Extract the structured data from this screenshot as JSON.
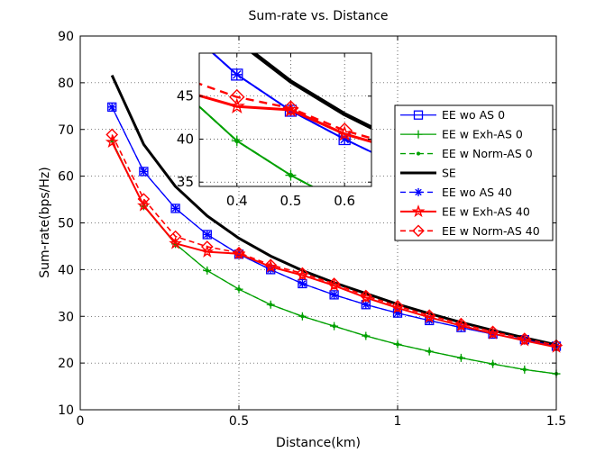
{
  "chart_data": {
    "type": "line",
    "title": "Sum-rate vs. Distance",
    "xlabel": "Distance(km)",
    "ylabel": "Sum-rate(bps/Hz)",
    "xlim": [
      0,
      1.5
    ],
    "ylim": [
      10,
      90
    ],
    "xticks": [
      0,
      0.5,
      1,
      1.5
    ],
    "xtick_labels": [
      "0",
      "0.5",
      "1",
      "1.5"
    ],
    "yticks": [
      10,
      20,
      30,
      40,
      50,
      60,
      70,
      80,
      90
    ],
    "ytick_labels": [
      "10",
      "20",
      "30",
      "40",
      "50",
      "60",
      "70",
      "80",
      "90"
    ],
    "grid": true,
    "legend_position": "inside-right",
    "x": [
      0.1,
      0.2,
      0.3,
      0.4,
      0.5,
      0.6,
      0.7,
      0.8,
      0.9,
      1.0,
      1.1,
      1.2,
      1.3,
      1.4,
      1.5
    ],
    "series": [
      {
        "name": "EE wo AS 0",
        "color": "#0000ff",
        "line": "solid",
        "width": 1.3,
        "marker": "square",
        "values": [
          74.8,
          61.0,
          53.1,
          47.5,
          43.3,
          40.0,
          37.0,
          34.6,
          32.5,
          30.7,
          29.1,
          27.6,
          26.2,
          25.0,
          23.6
        ]
      },
      {
        "name": "EE w Exh-AS 0",
        "color": "#00a000",
        "line": "solid",
        "width": 1.3,
        "marker": "plus",
        "values": [
          67.6,
          53.6,
          45.5,
          39.8,
          35.8,
          32.5,
          30.0,
          27.9,
          25.8,
          24.0,
          22.5,
          21.1,
          19.8,
          18.6,
          17.7
        ]
      },
      {
        "name": "EE w Norm-AS 0",
        "color": "#00a000",
        "line": "dashed",
        "width": 1.3,
        "marker": "dot",
        "values": [
          67.6,
          53.6,
          45.5,
          39.8,
          35.8,
          32.5,
          30.0,
          27.9,
          25.8,
          24.0,
          22.5,
          21.1,
          19.8,
          18.6,
          17.7
        ]
      },
      {
        "name": "SE",
        "color": "#000000",
        "line": "solid",
        "width": 3,
        "marker": "none",
        "values": [
          81.6,
          66.8,
          57.8,
          51.5,
          46.7,
          42.9,
          39.8,
          37.2,
          34.9,
          32.6,
          30.6,
          28.7,
          27.0,
          25.4,
          23.9
        ]
      },
      {
        "name": "EE wo AS 40",
        "color": "#0000ff",
        "line": "dashed",
        "width": 1.3,
        "marker": "asterisk",
        "values": [
          74.8,
          61.0,
          53.1,
          47.5,
          43.3,
          40.0,
          37.0,
          34.6,
          32.5,
          30.7,
          29.1,
          27.6,
          26.2,
          25.0,
          23.6
        ]
      },
      {
        "name": "EE w Exh-AS 40",
        "color": "#ff0000",
        "line": "solid",
        "width": 2,
        "marker": "star",
        "values": [
          67.3,
          53.7,
          45.6,
          43.8,
          43.4,
          40.6,
          38.8,
          36.6,
          34.0,
          31.8,
          29.8,
          28.0,
          26.3,
          24.8,
          23.4
        ]
      },
      {
        "name": "EE w Norm-AS 40",
        "color": "#ff0000",
        "line": "dashed",
        "width": 1.6,
        "marker": "diamond",
        "values": [
          68.9,
          55.1,
          47.1,
          44.9,
          43.6,
          41.0,
          39.2,
          37.0,
          34.4,
          32.2,
          30.2,
          28.4,
          26.7,
          25.2,
          23.8
        ]
      }
    ],
    "inset": {
      "xlim": [
        0.33,
        0.65
      ],
      "ylim": [
        34.5,
        50
      ],
      "xticks": [
        0.4,
        0.5,
        0.6
      ],
      "xtick_labels": [
        "0.4",
        "0.5",
        "0.6"
      ],
      "yticks": [
        35,
        40,
        45
      ],
      "ytick_labels": [
        "35",
        "40",
        "45"
      ]
    }
  }
}
